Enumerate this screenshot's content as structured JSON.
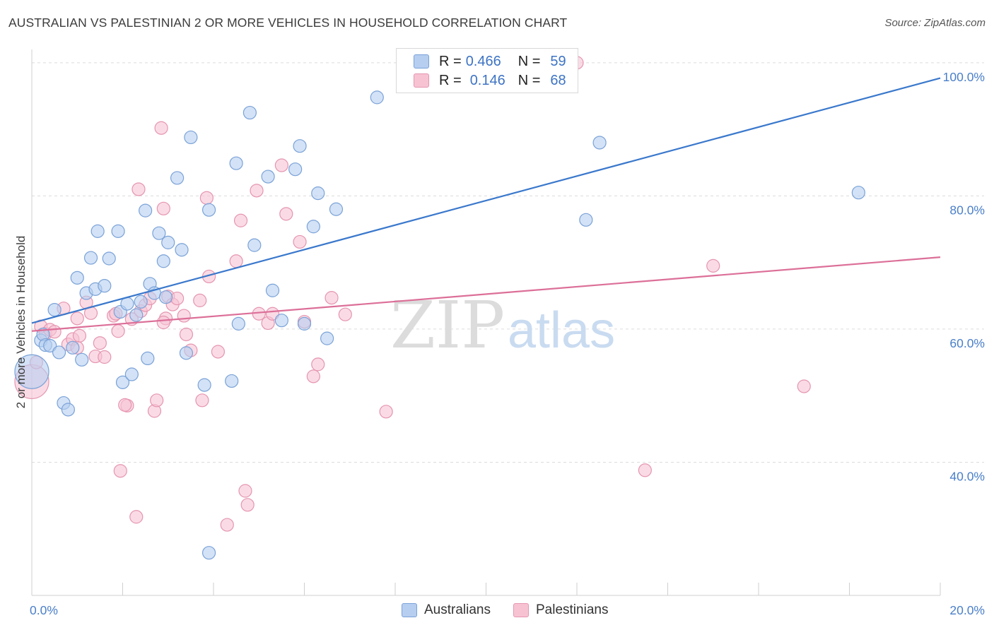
{
  "header": {
    "title": "AUSTRALIAN VS PALESTINIAN 2 OR MORE VEHICLES IN HOUSEHOLD CORRELATION CHART",
    "source": "Source: ZipAtlas.com"
  },
  "legend": {
    "rows": [
      {
        "r_label": "R =",
        "r_value": "0.466",
        "n_label": "N =",
        "n_value": "59"
      },
      {
        "r_label": "R =",
        "r_value": "0.146",
        "n_label": "N =",
        "n_value": "68"
      }
    ],
    "bottom": [
      "Australians",
      "Palestinians"
    ]
  },
  "watermark": {
    "zip": "ZIP",
    "atlas": "atlas"
  },
  "colors": {
    "blue_fill": "#b6cef0",
    "blue_stroke": "#7aa2d8",
    "blue_line": "#3a78cc",
    "pink_fill": "#f7c3d3",
    "pink_stroke": "#e595b0",
    "pink_line": "#dc6f98",
    "tick_label": "#4a7fc9",
    "grid": "#dcdcdc"
  },
  "chart_data": {
    "type": "scatter",
    "title": "AUSTRALIAN VS PALESTINIAN 2 OR MORE VEHICLES IN HOUSEHOLD CORRELATION CHART",
    "xlabel": "",
    "ylabel": "2 or more Vehicles in Household",
    "xlim": [
      0,
      20
    ],
    "ylim": [
      20,
      102
    ],
    "x_ticks": [
      {
        "v": 0,
        "label": "0.0%"
      },
      {
        "v": 20,
        "label": "20.0%"
      }
    ],
    "y_ticks": [
      {
        "v": 40,
        "label": "40.0%"
      },
      {
        "v": 60,
        "label": "60.0%"
      },
      {
        "v": 80,
        "label": "80.0%"
      },
      {
        "v": 100,
        "label": "100.0%"
      }
    ],
    "grid": true,
    "series": [
      {
        "name": "Australians",
        "color": "#b6cef0",
        "trend": {
          "x": [
            0,
            20
          ],
          "y": [
            60.9,
            97.7
          ]
        },
        "points": [
          {
            "x": 0.0,
            "y": 53.6,
            "big": true
          },
          {
            "x": 0.2,
            "y": 58.3
          },
          {
            "x": 0.25,
            "y": 59.2
          },
          {
            "x": 0.3,
            "y": 57.6
          },
          {
            "x": 0.4,
            "y": 57.5
          },
          {
            "x": 0.5,
            "y": 62.9
          },
          {
            "x": 0.6,
            "y": 56.5
          },
          {
            "x": 0.7,
            "y": 48.9
          },
          {
            "x": 0.8,
            "y": 47.9
          },
          {
            "x": 0.9,
            "y": 57.2
          },
          {
            "x": 1.0,
            "y": 67.7
          },
          {
            "x": 1.1,
            "y": 55.4
          },
          {
            "x": 1.2,
            "y": 65.4
          },
          {
            "x": 1.3,
            "y": 70.7
          },
          {
            "x": 1.4,
            "y": 66.0
          },
          {
            "x": 1.45,
            "y": 74.7
          },
          {
            "x": 1.6,
            "y": 66.5
          },
          {
            "x": 1.7,
            "y": 70.6
          },
          {
            "x": 1.9,
            "y": 74.7
          },
          {
            "x": 1.95,
            "y": 62.6
          },
          {
            "x": 2.0,
            "y": 52.0
          },
          {
            "x": 2.1,
            "y": 63.8
          },
          {
            "x": 2.2,
            "y": 53.2
          },
          {
            "x": 2.3,
            "y": 62.1
          },
          {
            "x": 2.4,
            "y": 64.1
          },
          {
            "x": 2.5,
            "y": 77.8
          },
          {
            "x": 2.55,
            "y": 55.6
          },
          {
            "x": 2.6,
            "y": 66.8
          },
          {
            "x": 2.7,
            "y": 65.4
          },
          {
            "x": 2.8,
            "y": 74.4
          },
          {
            "x": 2.9,
            "y": 70.2
          },
          {
            "x": 2.95,
            "y": 64.8
          },
          {
            "x": 3.0,
            "y": 73.0
          },
          {
            "x": 3.2,
            "y": 82.7
          },
          {
            "x": 3.3,
            "y": 71.9
          },
          {
            "x": 3.4,
            "y": 56.4
          },
          {
            "x": 3.5,
            "y": 88.8
          },
          {
            "x": 3.8,
            "y": 51.6
          },
          {
            "x": 3.9,
            "y": 77.9
          },
          {
            "x": 4.4,
            "y": 52.2
          },
          {
            "x": 4.5,
            "y": 84.9
          },
          {
            "x": 4.55,
            "y": 60.8
          },
          {
            "x": 4.8,
            "y": 92.5
          },
          {
            "x": 4.9,
            "y": 72.6
          },
          {
            "x": 5.2,
            "y": 82.9
          },
          {
            "x": 5.3,
            "y": 65.8
          },
          {
            "x": 5.5,
            "y": 61.3
          },
          {
            "x": 5.8,
            "y": 84.0
          },
          {
            "x": 5.9,
            "y": 87.5
          },
          {
            "x": 6.0,
            "y": 60.8
          },
          {
            "x": 6.2,
            "y": 75.4
          },
          {
            "x": 6.3,
            "y": 80.4
          },
          {
            "x": 6.5,
            "y": 58.6
          },
          {
            "x": 6.7,
            "y": 78.0
          },
          {
            "x": 7.6,
            "y": 94.8
          },
          {
            "x": 12.2,
            "y": 76.4
          },
          {
            "x": 12.5,
            "y": 88.0
          },
          {
            "x": 18.2,
            "y": 80.5
          },
          {
            "x": 3.9,
            "y": 26.4
          }
        ]
      },
      {
        "name": "Palestinians",
        "color": "#f7c3d3",
        "trend": {
          "x": [
            0,
            20
          ],
          "y": [
            59.7,
            70.8
          ]
        },
        "points": [
          {
            "x": 0.0,
            "y": 52.1,
            "big": true
          },
          {
            "x": 0.1,
            "y": 55.0
          },
          {
            "x": 0.2,
            "y": 60.4
          },
          {
            "x": 0.3,
            "y": 59.3
          },
          {
            "x": 0.4,
            "y": 59.9
          },
          {
            "x": 0.5,
            "y": 59.6
          },
          {
            "x": 0.7,
            "y": 63.1
          },
          {
            "x": 0.8,
            "y": 57.7
          },
          {
            "x": 0.9,
            "y": 58.5
          },
          {
            "x": 1.0,
            "y": 61.6
          },
          {
            "x": 1.05,
            "y": 59.0
          },
          {
            "x": 1.2,
            "y": 64.0
          },
          {
            "x": 1.3,
            "y": 62.4
          },
          {
            "x": 1.4,
            "y": 55.9
          },
          {
            "x": 1.5,
            "y": 57.9
          },
          {
            "x": 1.6,
            "y": 55.8
          },
          {
            "x": 1.8,
            "y": 62.0
          },
          {
            "x": 1.85,
            "y": 62.3
          },
          {
            "x": 1.9,
            "y": 59.7
          },
          {
            "x": 1.95,
            "y": 38.7
          },
          {
            "x": 2.1,
            "y": 48.5
          },
          {
            "x": 2.2,
            "y": 61.5
          },
          {
            "x": 2.3,
            "y": 31.8
          },
          {
            "x": 2.35,
            "y": 81.0
          },
          {
            "x": 2.4,
            "y": 62.7
          },
          {
            "x": 2.5,
            "y": 63.6
          },
          {
            "x": 2.6,
            "y": 64.6
          },
          {
            "x": 2.7,
            "y": 47.7
          },
          {
            "x": 2.75,
            "y": 49.3
          },
          {
            "x": 2.85,
            "y": 90.2
          },
          {
            "x": 2.9,
            "y": 78.1
          },
          {
            "x": 2.95,
            "y": 61.6
          },
          {
            "x": 3.0,
            "y": 64.9
          },
          {
            "x": 3.1,
            "y": 63.7
          },
          {
            "x": 3.2,
            "y": 64.6
          },
          {
            "x": 3.35,
            "y": 62.0
          },
          {
            "x": 3.4,
            "y": 59.2
          },
          {
            "x": 3.5,
            "y": 56.8
          },
          {
            "x": 3.7,
            "y": 64.3
          },
          {
            "x": 3.75,
            "y": 49.3
          },
          {
            "x": 3.85,
            "y": 79.7
          },
          {
            "x": 3.9,
            "y": 67.9
          },
          {
            "x": 4.1,
            "y": 56.6
          },
          {
            "x": 4.3,
            "y": 30.6
          },
          {
            "x": 4.5,
            "y": 70.2
          },
          {
            "x": 4.6,
            "y": 76.3
          },
          {
            "x": 4.7,
            "y": 35.7
          },
          {
            "x": 4.75,
            "y": 33.6
          },
          {
            "x": 4.95,
            "y": 80.8
          },
          {
            "x": 5.0,
            "y": 62.3
          },
          {
            "x": 5.2,
            "y": 60.9
          },
          {
            "x": 5.3,
            "y": 62.3
          },
          {
            "x": 5.5,
            "y": 84.6
          },
          {
            "x": 5.6,
            "y": 77.3
          },
          {
            "x": 5.9,
            "y": 73.1
          },
          {
            "x": 6.0,
            "y": 61.1
          },
          {
            "x": 6.2,
            "y": 52.9
          },
          {
            "x": 6.3,
            "y": 54.7
          },
          {
            "x": 6.6,
            "y": 64.7
          },
          {
            "x": 6.9,
            "y": 62.2
          },
          {
            "x": 7.8,
            "y": 47.6
          },
          {
            "x": 12.0,
            "y": 100.0
          },
          {
            "x": 13.5,
            "y": 38.8
          },
          {
            "x": 15.0,
            "y": 69.5
          },
          {
            "x": 17.0,
            "y": 51.4
          },
          {
            "x": 1.0,
            "y": 57.2
          },
          {
            "x": 2.05,
            "y": 48.6
          },
          {
            "x": 2.9,
            "y": 61.0
          }
        ]
      }
    ]
  }
}
